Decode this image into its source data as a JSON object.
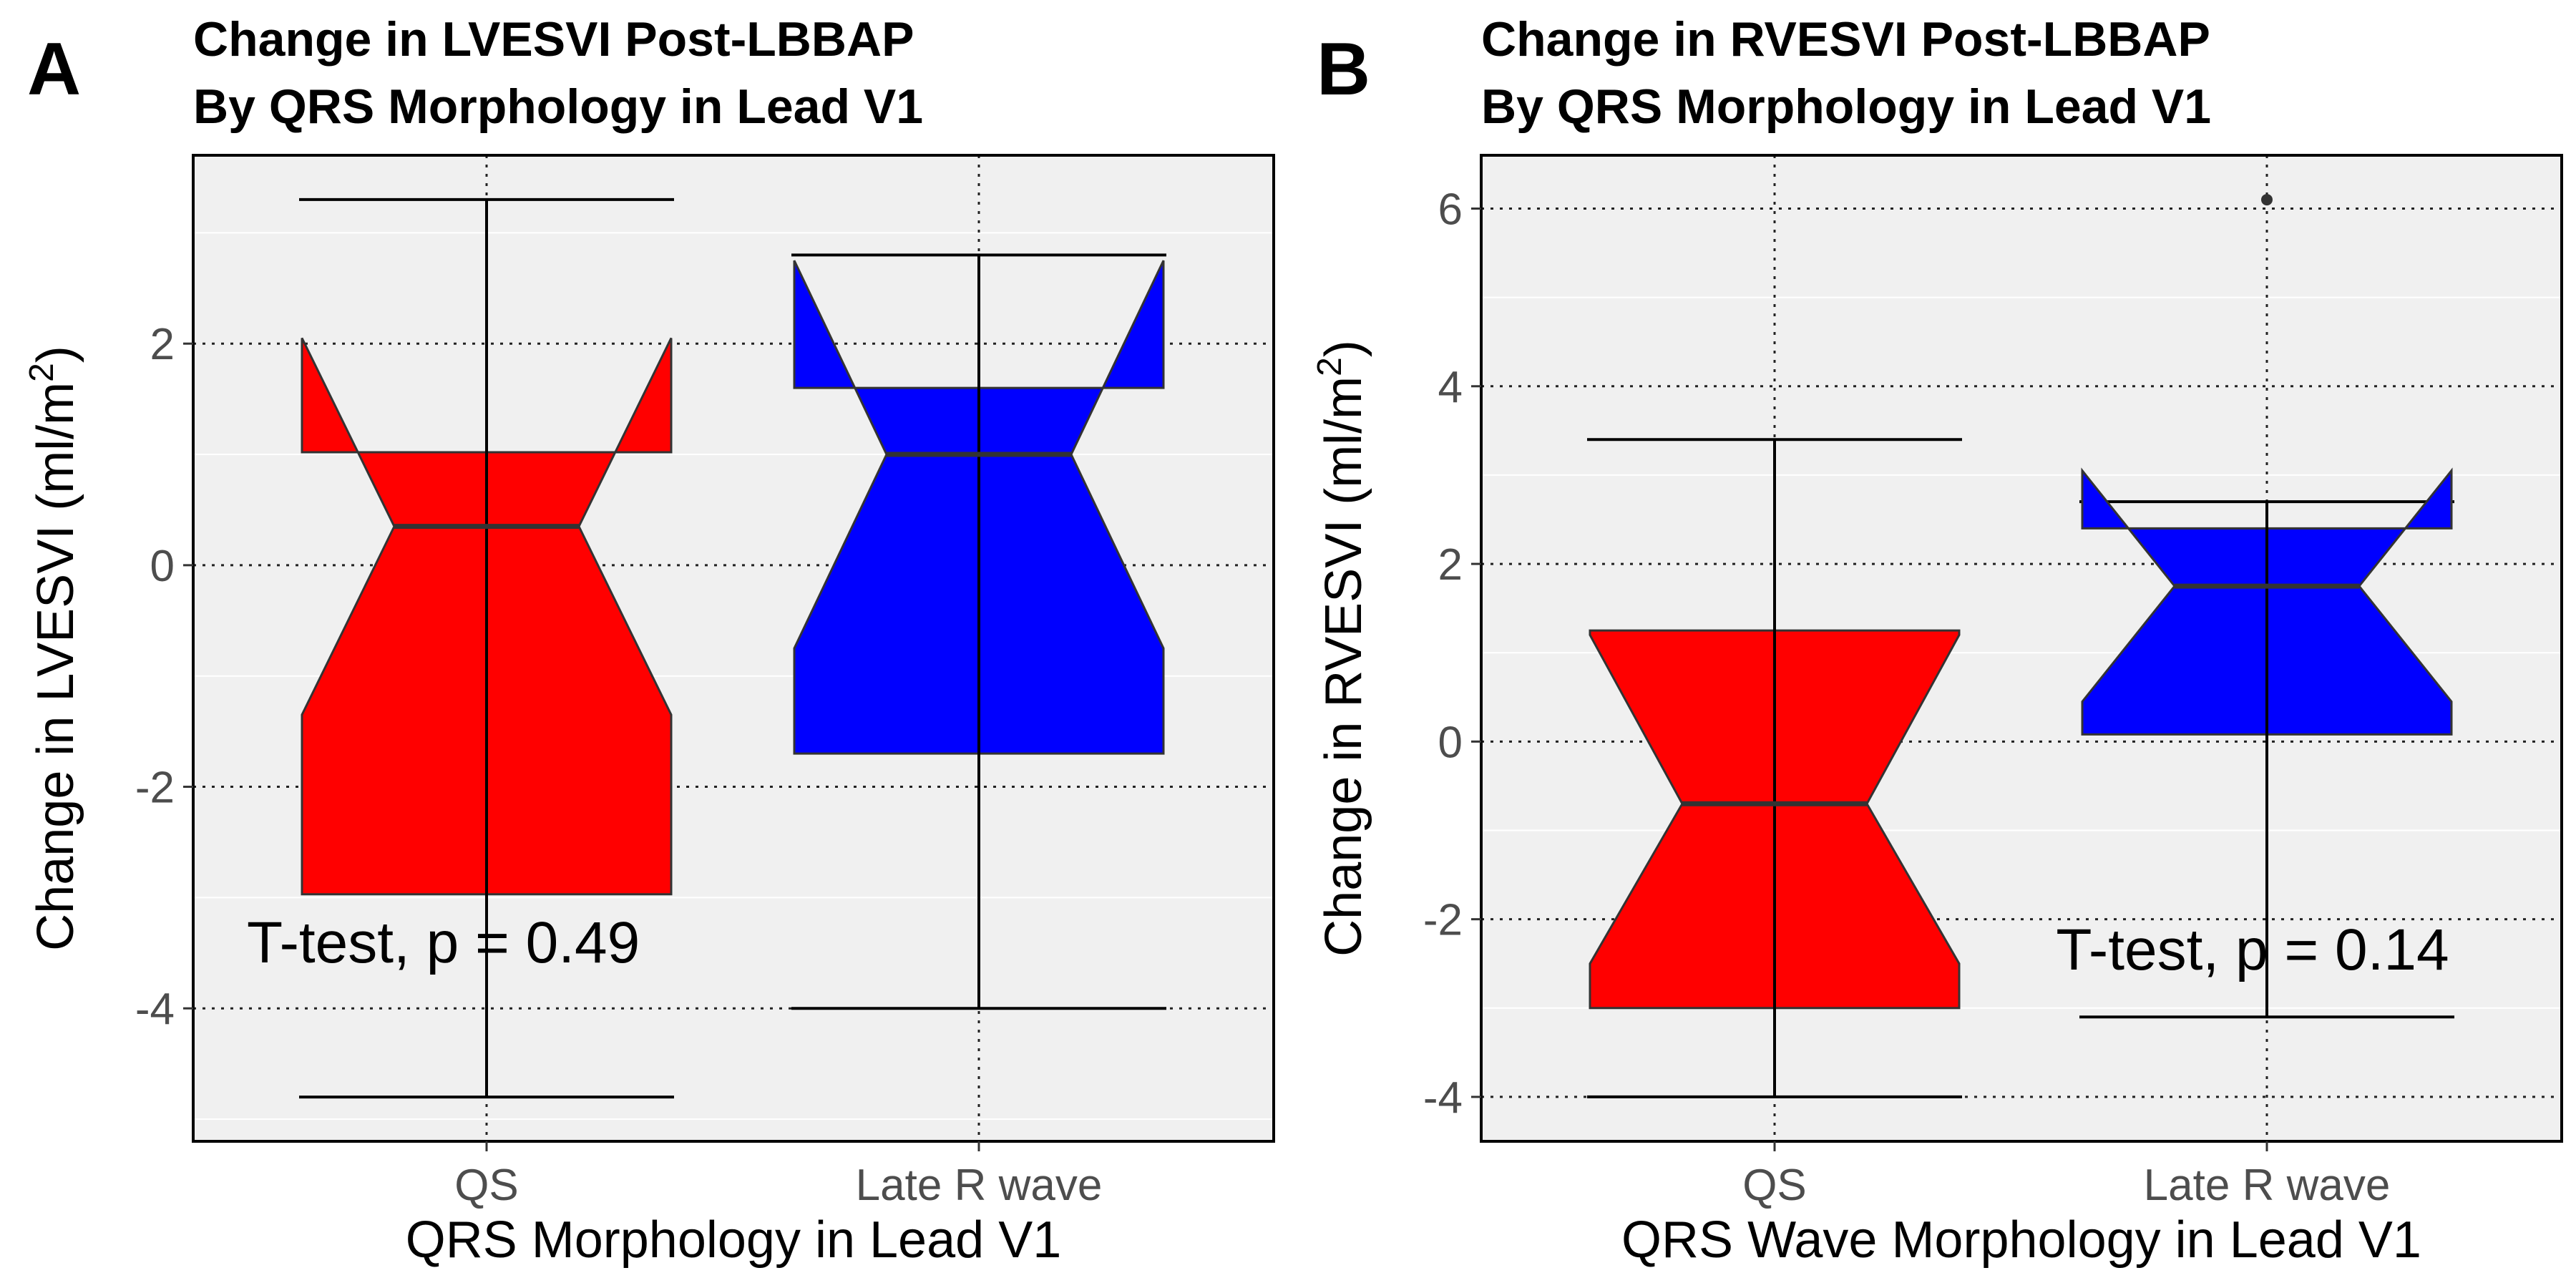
{
  "colors": {
    "qs": "#FF0000",
    "late_r": "#0000FF",
    "panel_bg": "#F0F0F0"
  },
  "chart_data": [
    {
      "panel": "A",
      "type": "box",
      "notched": true,
      "title_lines": [
        "Change in LVESVI Post-LBBAP",
        "By QRS Morphology in Lead V1"
      ],
      "xlabel": "QRS Morphology in Lead V1",
      "ylabel": "Change in LVESVI (ml/m",
      "ylabel_sup": "2",
      "ylabel_end": ")",
      "categories": [
        "QS",
        "Late R wave"
      ],
      "ylim": [
        -5.2,
        3.7
      ],
      "yticks": [
        -4,
        -2,
        0,
        2
      ],
      "ytick_labels": [
        "-4",
        "-2",
        "0",
        "2"
      ],
      "grid": true,
      "boxes": [
        {
          "category": "QS",
          "whisker_low": -4.8,
          "q1": -2.97,
          "median": 0.35,
          "q3": 1.02,
          "whisker_high": 3.3,
          "notch_low": -1.35,
          "notch_high": 2.05,
          "outliers": []
        },
        {
          "category": "Late R wave",
          "whisker_low": -4.0,
          "q1": -1.7,
          "median": 1.0,
          "q3": 1.6,
          "whisker_high": 2.8,
          "notch_low": -0.75,
          "notch_high": 2.75,
          "outliers": []
        }
      ],
      "annotation": "T-test, p = 0.49"
    },
    {
      "panel": "B",
      "type": "box",
      "notched": true,
      "title_lines": [
        "Change in RVESVI Post-LBBAP",
        "By QRS Morphology in Lead V1"
      ],
      "xlabel": "QRS Wave Morphology in Lead V1",
      "ylabel": "Change in RVESVI (ml/m",
      "ylabel_sup": "2",
      "ylabel_end": ")",
      "categories": [
        "QS",
        "Late R wave"
      ],
      "ylim": [
        -4.5,
        6.6
      ],
      "yticks": [
        -4,
        -2,
        0,
        2,
        4,
        6
      ],
      "ytick_labels": [
        "-4",
        "-2",
        "0",
        "2",
        "4",
        "6"
      ],
      "grid": true,
      "boxes": [
        {
          "category": "QS",
          "whisker_low": -4.0,
          "q1": -3.0,
          "median": -0.7,
          "q3": 1.25,
          "whisker_high": 3.4,
          "notch_low": -2.5,
          "notch_high": 1.2,
          "outliers": []
        },
        {
          "category": "Late R wave",
          "whisker_low": -3.1,
          "q1": 0.08,
          "median": 1.75,
          "q3": 2.4,
          "whisker_high": 2.7,
          "notch_low": 0.45,
          "notch_high": 3.05,
          "outliers": [
            6.1
          ]
        }
      ],
      "annotation": "T-test, p = 0.14"
    }
  ]
}
